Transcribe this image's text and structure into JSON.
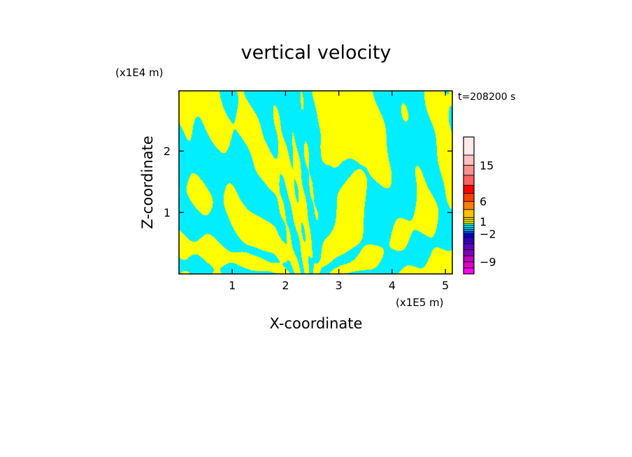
{
  "chart_data": {
    "type": "heatmap",
    "title": "vertical velocity",
    "xlabel": "X-coordinate",
    "ylabel": "Z-coordinate",
    "x_unit": "(x1E5 m)",
    "y_unit": "(x1E4 m)",
    "time_label": "t=208200 s",
    "xlim": [
      0,
      5.13
    ],
    "ylim": [
      0,
      2.98
    ],
    "x_ticks": [
      1,
      2,
      3,
      4,
      5
    ],
    "y_ticks": [
      1,
      2
    ],
    "colorbar": {
      "levels": [
        -12,
        -10.5,
        -9,
        -7.5,
        -6,
        -4.5,
        -3,
        -2,
        -1.5,
        -1,
        -0.5,
        0,
        0.5,
        1,
        1.5,
        2,
        4,
        6,
        8,
        10,
        12.5,
        15,
        17.5,
        22
      ],
      "colors": [
        "#ff00ff",
        "#e000c8",
        "#c000c0",
        "#8000c0",
        "#6000c0",
        "#3000c0",
        "#0000c0",
        "#0040ff",
        "#0090ff",
        "#00c8ff",
        "#00ffff",
        "#00ffff",
        "#ffff00",
        "#ffff00",
        "#ffe000",
        "#ffc000",
        "#ff8000",
        "#ff4000",
        "#ff0000",
        "#ff6060",
        "#ff9090",
        "#ffc0c0",
        "#ffe8e8"
      ],
      "tick_labels": [
        {
          "value": 15,
          "label": "15"
        },
        {
          "value": 6,
          "label": "6"
        },
        {
          "value": 1,
          "label": "1"
        },
        {
          "value": -2,
          "label": "−2"
        },
        {
          "value": -9,
          "label": "−9"
        }
      ]
    },
    "field_colors": {
      "positive": "#ffff00",
      "negative": "#00eeff"
    }
  }
}
